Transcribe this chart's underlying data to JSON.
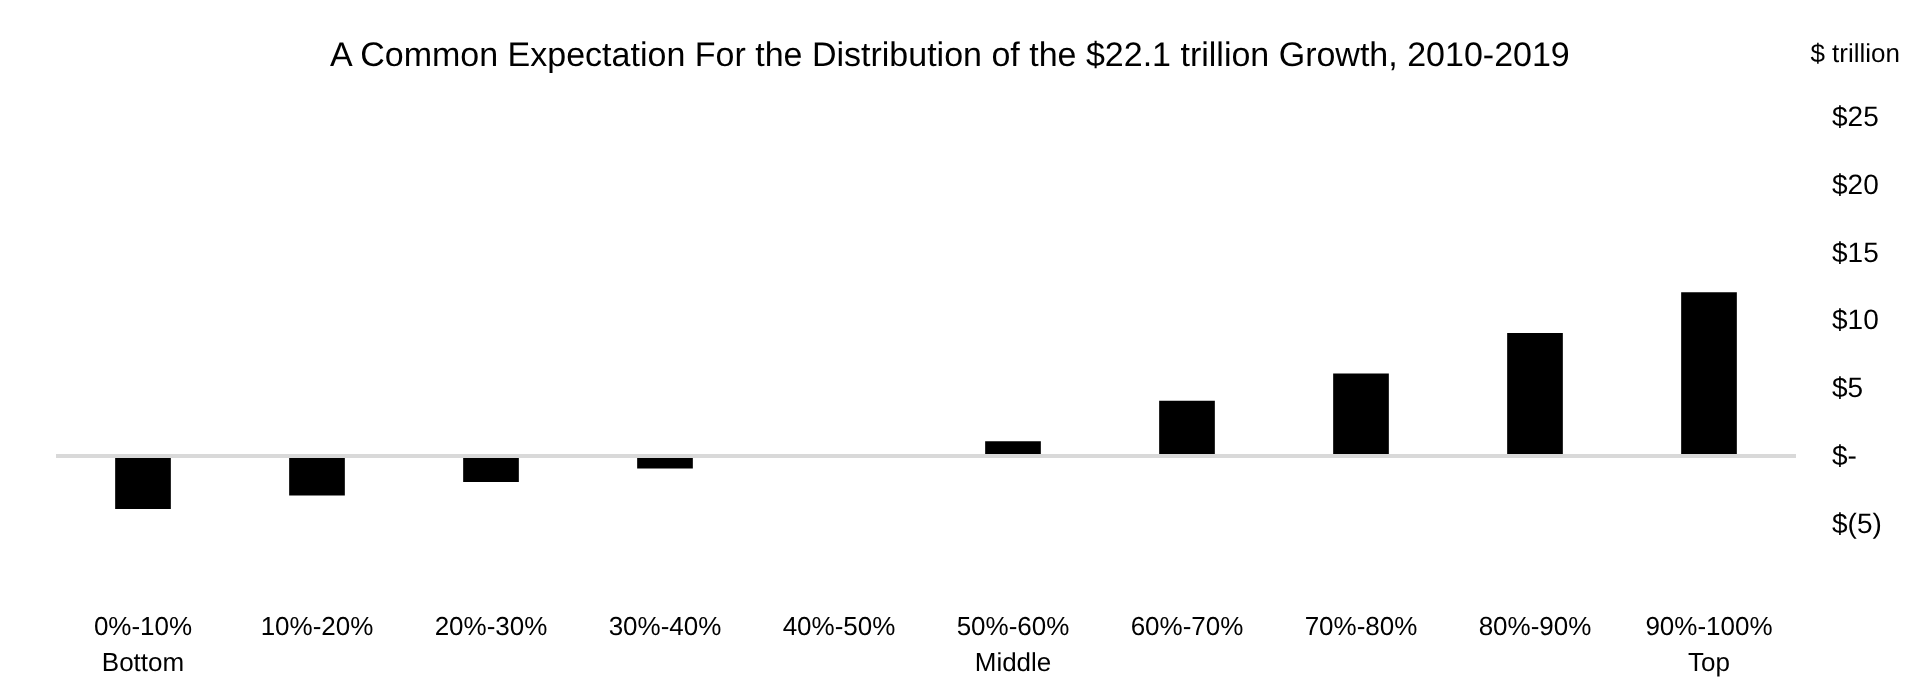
{
  "chart_data": {
    "type": "bar",
    "title": "A Common Expectation For the Distribution of the $22.1 trillion Growth, 2010-2019",
    "ylabel": "$ trillion",
    "categories": [
      "0%-10%\nBottom",
      "10%-20%",
      "20%-30%",
      "30%-40%",
      "40%-50%",
      "50%-60%\nMiddle",
      "60%-70%",
      "70%-80%",
      "80%-90%",
      "90%-100%\nTop"
    ],
    "values": [
      -4,
      -3,
      -2,
      -1,
      0,
      1,
      4,
      6,
      9,
      12
    ],
    "color": "#000000",
    "ylim": [
      -5,
      25
    ],
    "yticks": [
      {
        "value": -5,
        "label": "$(5)"
      },
      {
        "value": 0,
        "label": "$-"
      },
      {
        "value": 5,
        "label": "$5"
      },
      {
        "value": 10,
        "label": "$10"
      },
      {
        "value": 15,
        "label": "$15"
      },
      {
        "value": 20,
        "label": "$20"
      },
      {
        "value": 25,
        "label": "$25"
      }
    ],
    "ref_lines": [
      {
        "axis": "y",
        "value": 0,
        "color": "#d9d9d9"
      }
    ],
    "grid": false
  }
}
